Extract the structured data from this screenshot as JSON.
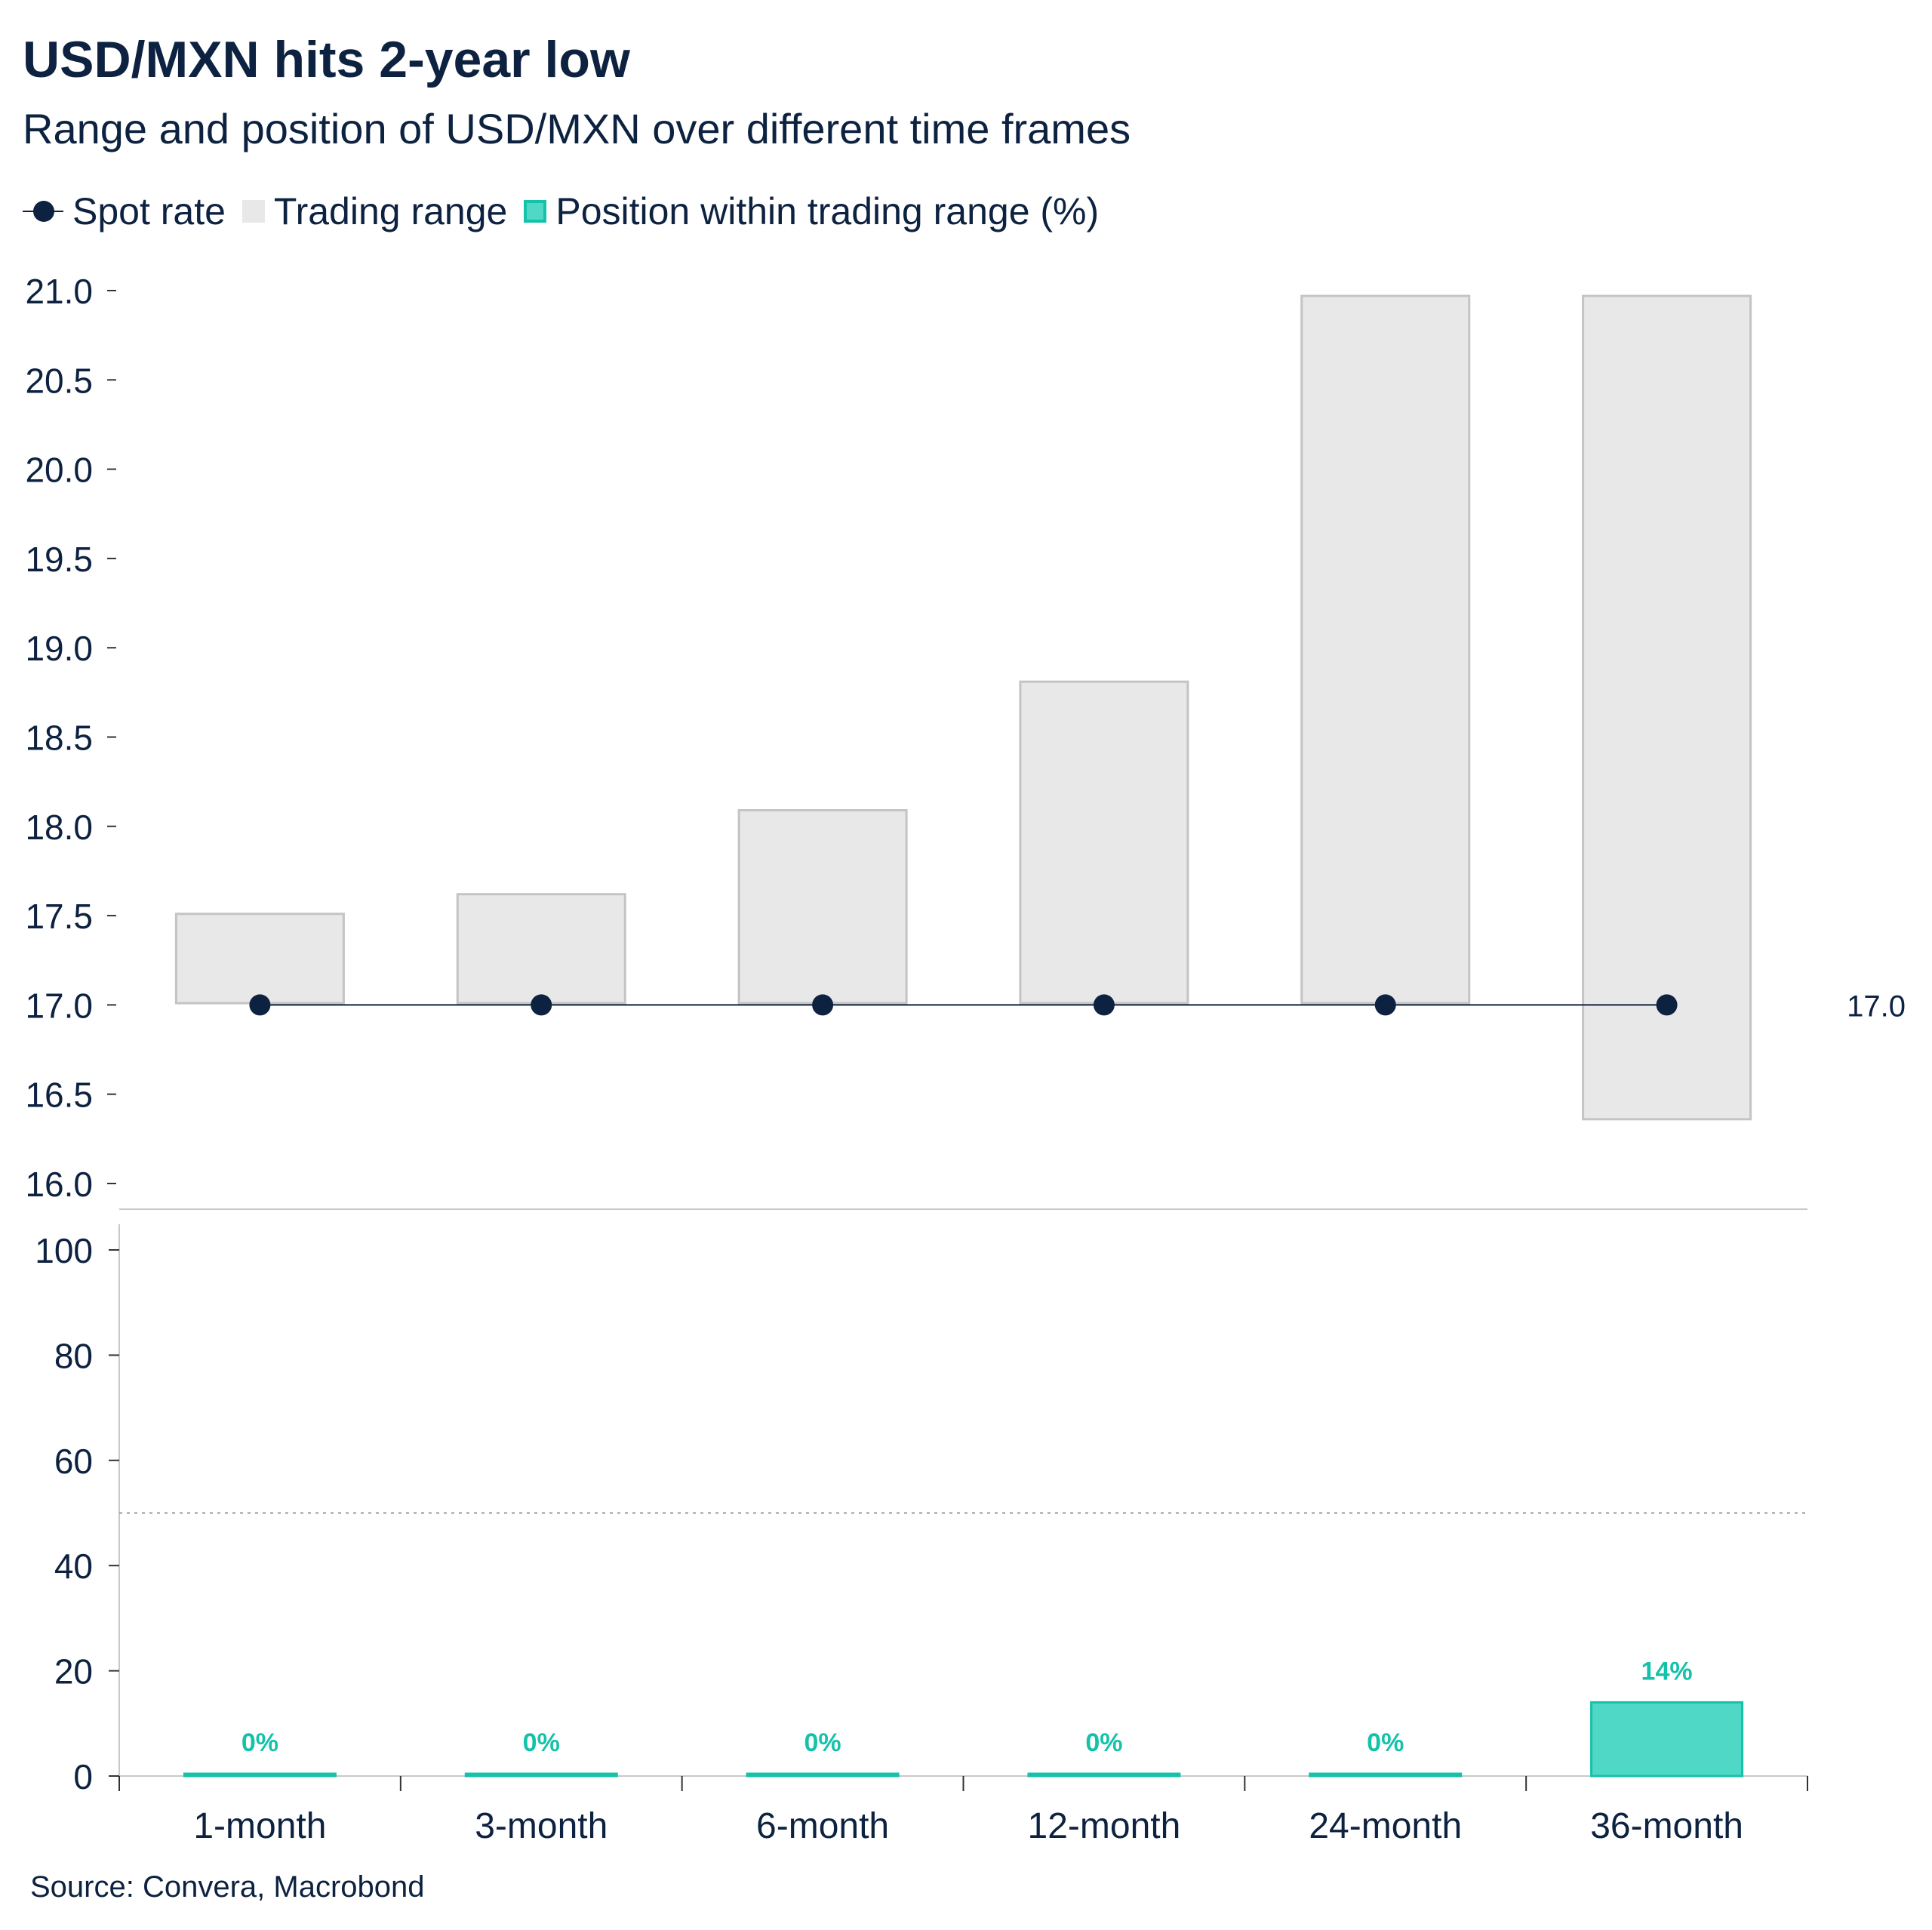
{
  "title": "USD/MXN hits 2-year low",
  "subtitle": "Range and position of USD/MXN over different time frames",
  "legend": [
    {
      "label": "Spot rate",
      "swatch": "spot"
    },
    {
      "label": "Trading range",
      "swatch": "range"
    },
    {
      "label": "Position within trading range (%)",
      "swatch": "pos"
    }
  ],
  "source": "Source: Convera, Macrobond",
  "colors": {
    "spot": "#0d2240",
    "range_fill": "#e8e8e8",
    "range_stroke": "#c4c4c4",
    "position_fill": "#4fd8c5",
    "position_stroke": "#14c2aa",
    "text": "#0d2240"
  },
  "chart_data": [
    {
      "type": "range-bar",
      "categories": [
        "1-month",
        "3-month",
        "6-month",
        "12-month",
        "24-month",
        "36-month"
      ],
      "series": [
        {
          "name": "Trading range",
          "low": [
            17.01,
            17.01,
            17.01,
            17.01,
            17.01,
            16.36
          ],
          "high": [
            17.51,
            17.62,
            18.09,
            18.81,
            20.97,
            20.97
          ]
        },
        {
          "name": "Spot rate",
          "values": [
            17.0,
            17.0,
            17.0,
            17.0,
            17.0,
            17.0
          ]
        }
      ],
      "end_label": "17.0",
      "yticks": [
        "16.0",
        "16.5",
        "17.0",
        "17.5",
        "18.0",
        "18.5",
        "19.0",
        "19.5",
        "20.0",
        "20.5",
        "21.0"
      ],
      "ylim": [
        16.0,
        21.0
      ]
    },
    {
      "type": "bar",
      "categories": [
        "1-month",
        "3-month",
        "6-month",
        "12-month",
        "24-month",
        "36-month"
      ],
      "series": [
        {
          "name": "Position within trading range (%)",
          "values": [
            0,
            0,
            0,
            0,
            0,
            14
          ]
        }
      ],
      "data_labels": [
        "0%",
        "0%",
        "0%",
        "0%",
        "0%",
        "14%"
      ],
      "yticks": [
        "0",
        "20",
        "40",
        "60",
        "80",
        "100"
      ],
      "ylim": [
        0,
        100
      ],
      "reference_line": 50
    }
  ]
}
